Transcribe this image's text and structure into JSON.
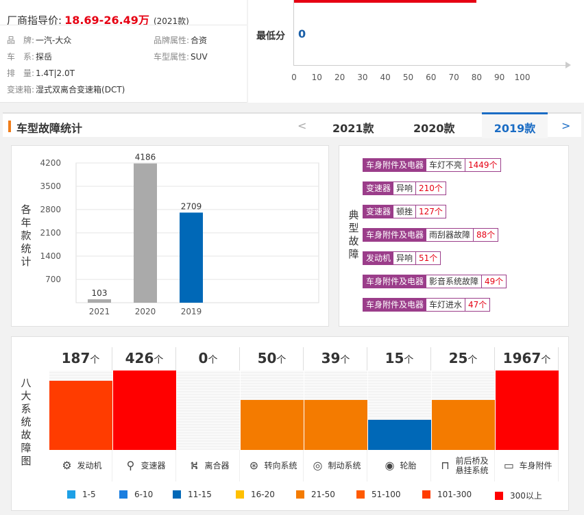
{
  "header": {
    "price_label": "厂商指导价:",
    "price": "18.69-26.49万",
    "year": "(2021款)",
    "brand_label": "品　牌:",
    "brand": "一汽-大众",
    "brand_attr_label": "品牌属性:",
    "brand_attr": "合资",
    "series_label": "车　系:",
    "series": "探岳",
    "type_label": "车型属性:",
    "type": "SUV",
    "displacement_label": "排　量:",
    "displacement": "1.4T|2.0T",
    "gearbox_label": "变速箱:",
    "gearbox": "湿式双离合变速箱(DCT)"
  },
  "score_chart": {
    "min_label": "最低分",
    "min_value": "0",
    "top_bar_value": 80,
    "ticks": [
      "0",
      "10",
      "20",
      "30",
      "40",
      "50",
      "60",
      "70",
      "80",
      "90",
      "100"
    ]
  },
  "section": {
    "title": "车型故障统计",
    "prev_arrow": "<",
    "next_arrow": ">",
    "tabs": [
      "2021款",
      "2020款",
      "2019款"
    ],
    "active_tab": "2019款"
  },
  "chart_data": {
    "type": "bar",
    "categories": [
      "2021",
      "2020",
      "2019"
    ],
    "values": [
      103,
      4186,
      2709
    ],
    "value_labels": [
      "103",
      "4186",
      "2709"
    ],
    "y_ticks": [
      "4200",
      "3500",
      "2800",
      "2100",
      "1400",
      "700"
    ],
    "ylim": [
      0,
      4200
    ],
    "ylabel": "各年款统计",
    "colors": [
      "#aaaaaa",
      "#aaaaaa",
      "#0068b7"
    ]
  },
  "typical": {
    "label": "典型故障",
    "items": [
      {
        "cat": "车身附件及电器",
        "sub": "车灯不亮",
        "cnt": "1449个"
      },
      {
        "cat": "变速器",
        "sub": "异响",
        "cnt": "210个"
      },
      {
        "cat": "变速器",
        "sub": "顿挫",
        "cnt": "127个"
      },
      {
        "cat": "车身附件及电器",
        "sub": "雨刮器故障",
        "cnt": "88个"
      },
      {
        "cat": "发动机",
        "sub": "异响",
        "cnt": "51个"
      },
      {
        "cat": "车身附件及电器",
        "sub": "影音系统故障",
        "cnt": "49个"
      },
      {
        "cat": "车身附件及电器",
        "sub": "车灯进水",
        "cnt": "47个"
      }
    ]
  },
  "systems": {
    "label": "八大系统故障图",
    "unit": "个",
    "items": [
      {
        "count": "187",
        "name": "发动机",
        "icon": "engine-icon",
        "glyph": "⚙",
        "color": "#ff3c00",
        "level": 0.87
      },
      {
        "count": "426",
        "name": "变速器",
        "icon": "gearbox-icon",
        "glyph": "⚲",
        "color": "#ff0000",
        "level": 1.0
      },
      {
        "count": "0",
        "name": "离合器",
        "icon": "clutch-icon",
        "glyph": "⛕",
        "color": "#cccccc",
        "level": 0
      },
      {
        "count": "50",
        "name": "转向系统",
        "icon": "steering-icon",
        "glyph": "⊛",
        "color": "#f47b00",
        "level": 0.63
      },
      {
        "count": "39",
        "name": "制动系统",
        "icon": "brake-icon",
        "glyph": "◎",
        "color": "#f47b00",
        "level": 0.63
      },
      {
        "count": "15",
        "name": "轮胎",
        "icon": "tire-icon",
        "glyph": "◉",
        "color": "#0068b7",
        "level": 0.38
      },
      {
        "count": "25",
        "name": "前后桥及\n悬挂系统",
        "icon": "suspension-icon",
        "glyph": "⊓",
        "color": "#f47b00",
        "level": 0.63
      },
      {
        "count": "1967",
        "name": "车身附件",
        "icon": "body-icon",
        "glyph": "▭",
        "color": "#ff0000",
        "level": 1.0
      }
    ]
  },
  "legend": [
    {
      "label": "1-5",
      "color": "#1ea0e6"
    },
    {
      "label": "6-10",
      "color": "#1a7ee0"
    },
    {
      "label": "11-15",
      "color": "#0068b7"
    },
    {
      "label": "16-20",
      "color": "#ffc000"
    },
    {
      "label": "21-50",
      "color": "#f47b00"
    },
    {
      "label": "51-100",
      "color": "#ff5a00"
    },
    {
      "label": "101-300",
      "color": "#ff3c00"
    },
    {
      "label": "300以上",
      "color": "#ff0000"
    }
  ]
}
